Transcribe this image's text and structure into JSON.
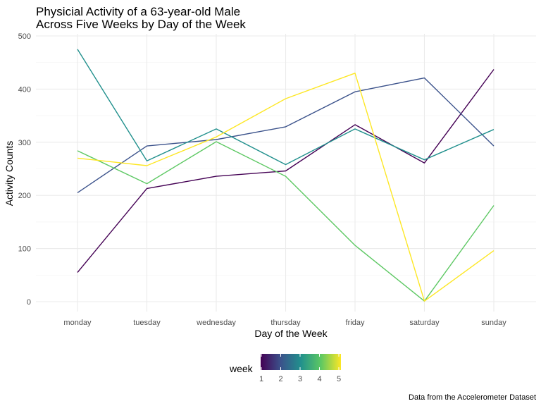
{
  "chart_data": {
    "type": "line",
    "title_line1": "Physicial Activity of a 63-year-old Male",
    "title_line2": "Across Five Weeks by Day of the Week",
    "xlabel": "Day of the Week",
    "ylabel": "Activity Counts",
    "categories": [
      "monday",
      "tuesday",
      "wednesday",
      "thursday",
      "friday",
      "saturday",
      "sunday"
    ],
    "ylim": [
      -20,
      500
    ],
    "yticks": [
      0,
      100,
      200,
      300,
      400,
      500
    ],
    "grid": true,
    "series": [
      {
        "name": "1",
        "color": "#440154",
        "values": [
          55,
          213,
          236,
          246,
          333,
          261,
          437
        ]
      },
      {
        "name": "2",
        "color": "#3b528b",
        "values": [
          205,
          293,
          305,
          329,
          395,
          421,
          293
        ]
      },
      {
        "name": "3",
        "color": "#21908d",
        "values": [
          475,
          265,
          325,
          258,
          325,
          267,
          324
        ]
      },
      {
        "name": "4",
        "color": "#5dc863",
        "values": [
          284,
          222,
          301,
          236,
          106,
          1,
          181
        ]
      },
      {
        "name": "5",
        "color": "#fde725",
        "values": [
          270,
          256,
          310,
          382,
          430,
          1,
          96
        ]
      }
    ],
    "legend": {
      "title": "week",
      "position": "bottom",
      "ticks": [
        "1",
        "2",
        "3",
        "4",
        "5"
      ],
      "gradient": [
        "#440154",
        "#3b528b",
        "#21908d",
        "#5dc863",
        "#fde725"
      ]
    },
    "caption": "Data from the Accelerometer Dataset"
  }
}
